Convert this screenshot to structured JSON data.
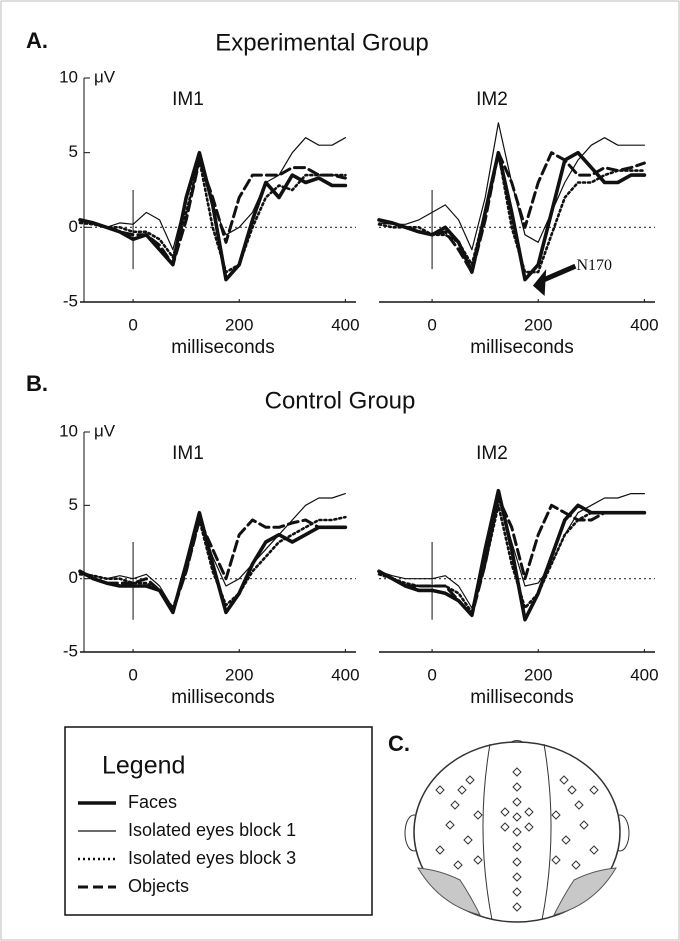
{
  "groups": [
    {
      "label": "A.",
      "title": "Experimental Group"
    },
    {
      "label": "B.",
      "title": "Control Group"
    }
  ],
  "legend_title": "Legend",
  "head_label": "C.",
  "chart_data": [
    {
      "type": "line",
      "title": "IM1",
      "ylabel": "μV",
      "xlabel": "milliseconds",
      "x": [
        -100,
        -75,
        -50,
        -25,
        0,
        25,
        50,
        75,
        100,
        125,
        150,
        175,
        200,
        225,
        250,
        275,
        300,
        325,
        350,
        375,
        400
      ],
      "xlim": [
        -100,
        420
      ],
      "ylim": [
        -5,
        10
      ],
      "xticks": [
        0,
        200,
        400
      ],
      "yticks": [
        -5,
        0,
        5,
        10
      ],
      "zero_line": true,
      "series": [
        {
          "name": "Faces",
          "color": "#111111",
          "style": "thick",
          "values": [
            0.5,
            0.3,
            0,
            -0.3,
            -0.8,
            -0.5,
            -1.5,
            -2.5,
            2,
            5,
            1.5,
            -3.5,
            -2.5,
            0.5,
            3,
            2,
            3.5,
            3,
            3.3,
            2.8,
            2.8
          ]
        },
        {
          "name": "Isolated eyes block 1",
          "color": "#111111",
          "style": "thin",
          "values": [
            0.5,
            0.3,
            0,
            0.3,
            0.2,
            1,
            0.5,
            -1.5,
            2,
            4.5,
            1.5,
            -0.5,
            0,
            1,
            3,
            3.5,
            5,
            6,
            5.5,
            5.5,
            6
          ]
        },
        {
          "name": "Isolated eyes block 3",
          "color": "#111111",
          "style": "dotted",
          "values": [
            0.3,
            0.2,
            0,
            0,
            -0.3,
            -0.3,
            -0.8,
            -2,
            1,
            4.5,
            0,
            -3,
            -2.5,
            0,
            2,
            2.8,
            2.5,
            3.5,
            3.5,
            3.5,
            3.5
          ]
        },
        {
          "name": "Objects",
          "color": "#111111",
          "style": "dashed",
          "values": [
            0.5,
            0.3,
            0,
            -0.3,
            -0.5,
            -0.5,
            -1.2,
            -2.5,
            0.5,
            4.5,
            2,
            -1,
            2,
            3.5,
            3.5,
            3.5,
            4,
            4,
            3.5,
            3.5,
            3.3
          ]
        }
      ]
    },
    {
      "type": "line",
      "title": "IM2",
      "xlabel": "milliseconds",
      "annotation": "N170",
      "x": [
        -100,
        -75,
        -50,
        -25,
        0,
        25,
        50,
        75,
        100,
        125,
        150,
        175,
        200,
        225,
        250,
        275,
        300,
        325,
        350,
        375,
        400
      ],
      "xlim": [
        -100,
        420
      ],
      "ylim": [
        -5,
        10
      ],
      "xticks": [
        0,
        200,
        400
      ],
      "zero_line": true,
      "series": [
        {
          "name": "Faces",
          "color": "#111111",
          "style": "thick",
          "values": [
            0.5,
            0.3,
            0,
            -0.3,
            -0.5,
            0,
            -1,
            -3,
            1,
            5,
            1,
            -3.5,
            -2.5,
            1,
            4.5,
            5,
            4,
            3,
            3,
            3.5,
            3.5
          ]
        },
        {
          "name": "Isolated eyes block 1",
          "color": "#111111",
          "style": "thin",
          "values": [
            0.3,
            0.2,
            0.2,
            0.5,
            1,
            1.5,
            0.5,
            -1.5,
            2,
            7,
            3,
            -0.5,
            -1,
            1,
            3,
            4.5,
            5.5,
            6,
            5.5,
            5.5,
            5.5
          ]
        },
        {
          "name": "Isolated eyes block 3",
          "color": "#111111",
          "style": "dotted",
          "values": [
            0.2,
            0,
            0,
            0,
            -0.5,
            -0.5,
            -1,
            -2.5,
            1,
            5,
            0,
            -3,
            -3,
            -0.5,
            2,
            3,
            3,
            3.5,
            3.8,
            3.8,
            3.8
          ]
        },
        {
          "name": "Objects",
          "color": "#111111",
          "style": "dashed",
          "values": [
            0.5,
            0.3,
            0,
            -0.3,
            -0.5,
            -0.3,
            -1.5,
            -3,
            0.5,
            5,
            3,
            0,
            3,
            5,
            4.5,
            3.5,
            3.5,
            4,
            3.8,
            4,
            4.3
          ]
        }
      ]
    },
    {
      "type": "line",
      "title": "IM1",
      "ylabel": "μV",
      "xlabel": "milliseconds",
      "x": [
        -100,
        -75,
        -50,
        -25,
        0,
        25,
        50,
        75,
        100,
        125,
        150,
        175,
        200,
        225,
        250,
        275,
        300,
        325,
        350,
        375,
        400
      ],
      "xlim": [
        -100,
        420
      ],
      "ylim": [
        -5,
        10
      ],
      "xticks": [
        0,
        200,
        400
      ],
      "yticks": [
        -5,
        0,
        5,
        10
      ],
      "zero_line": true,
      "series": [
        {
          "name": "Faces",
          "color": "#111111",
          "style": "thick",
          "values": [
            0.5,
            0,
            -0.3,
            -0.5,
            -0.5,
            -0.5,
            -0.8,
            -2.3,
            1,
            4.5,
            1,
            -2.3,
            -1,
            1,
            2.5,
            3,
            2.5,
            3,
            3.5,
            3.5,
            3.5
          ]
        },
        {
          "name": "Isolated eyes block 1",
          "color": "#111111",
          "style": "thin",
          "values": [
            0.5,
            0.2,
            0,
            0.2,
            0,
            0.3,
            -0.5,
            -2,
            0.5,
            4,
            1.5,
            -0.5,
            0,
            1,
            2,
            3,
            4,
            5,
            5.5,
            5.5,
            5.8
          ]
        },
        {
          "name": "Isolated eyes block 3",
          "color": "#111111",
          "style": "dotted",
          "values": [
            0.3,
            0.2,
            0,
            0,
            -0.3,
            -0.3,
            -0.8,
            -2,
            0.5,
            4,
            0.5,
            -1.8,
            -1,
            0.5,
            1.5,
            2.5,
            3,
            3.5,
            4,
            4,
            4.2
          ]
        },
        {
          "name": "Objects",
          "color": "#111111",
          "style": "dashed",
          "values": [
            0.5,
            0,
            -0.3,
            -0.3,
            -0.3,
            0,
            -0.8,
            -2.2,
            0.5,
            4,
            2,
            0,
            3,
            4,
            3.5,
            3.5,
            3.8,
            4,
            3.5,
            3.5,
            3.5
          ]
        }
      ]
    },
    {
      "type": "line",
      "title": "IM2",
      "xlabel": "milliseconds",
      "x": [
        -100,
        -75,
        -50,
        -25,
        0,
        25,
        50,
        75,
        100,
        125,
        150,
        175,
        200,
        225,
        250,
        275,
        300,
        325,
        350,
        375,
        400
      ],
      "xlim": [
        -100,
        420
      ],
      "ylim": [
        -5,
        10
      ],
      "xticks": [
        0,
        200,
        400
      ],
      "zero_line": true,
      "series": [
        {
          "name": "Faces",
          "color": "#111111",
          "style": "thick",
          "values": [
            0.5,
            0,
            -0.5,
            -0.8,
            -0.8,
            -1,
            -1.5,
            -2.5,
            2,
            6,
            2,
            -2.8,
            -1,
            1.5,
            4,
            5,
            4.5,
            4.5,
            4.5,
            4.5,
            4.5
          ]
        },
        {
          "name": "Isolated eyes block 1",
          "color": "#111111",
          "style": "thin",
          "values": [
            0.5,
            0.2,
            0,
            0,
            0,
            0.2,
            -0.5,
            -2,
            1.5,
            5.5,
            2.5,
            -0.5,
            -0.3,
            1,
            3,
            4.5,
            5,
            5.5,
            5.5,
            5.8,
            5.8
          ]
        },
        {
          "name": "Isolated eyes block 3",
          "color": "#111111",
          "style": "dotted",
          "values": [
            0.3,
            0,
            -0.3,
            -0.5,
            -0.5,
            -0.5,
            -1,
            -2.3,
            1,
            5,
            1,
            -2,
            -1,
            1,
            3,
            4,
            4.5,
            4.5,
            4.5,
            4.5,
            4.5
          ]
        },
        {
          "name": "Objects",
          "color": "#111111",
          "style": "dashed",
          "values": [
            0.5,
            0,
            -0.5,
            -0.5,
            -0.5,
            -0.5,
            -1.5,
            -2.5,
            1,
            5.5,
            3.5,
            0,
            3,
            5,
            4.5,
            4,
            4,
            4.5,
            4.5,
            4.5,
            4.5
          ]
        }
      ]
    }
  ]
}
